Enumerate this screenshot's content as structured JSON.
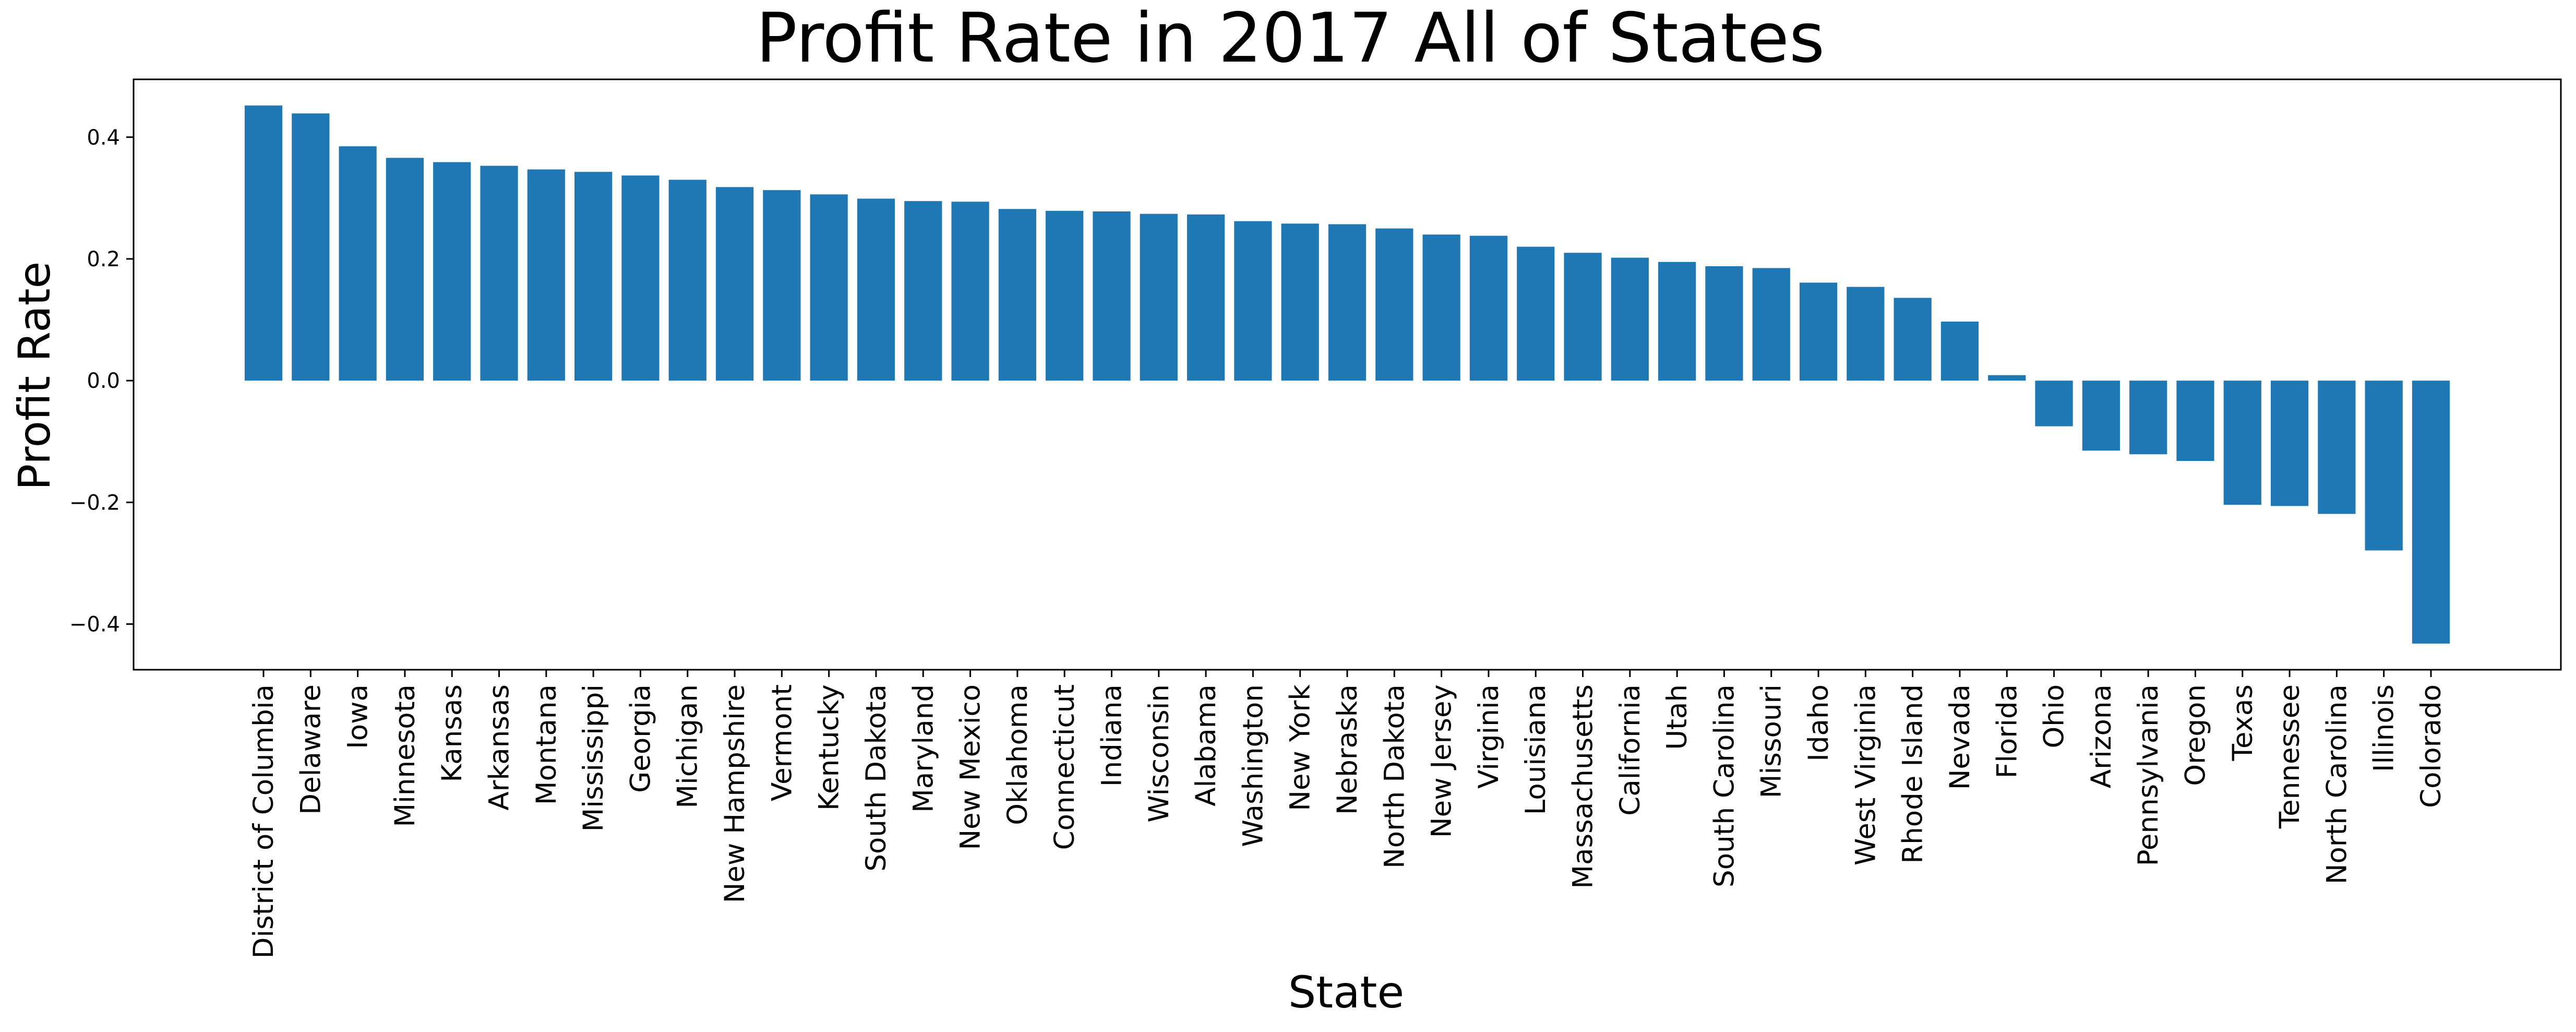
{
  "chart_data": {
    "type": "bar",
    "title": "Profit Rate in 2017 All of States",
    "xlabel": "State",
    "ylabel": "Profit Rate",
    "ylim": [
      -0.475,
      0.495
    ],
    "yticks": [
      -0.4,
      -0.2,
      0.0,
      0.2,
      0.4
    ],
    "ytick_labels": [
      "−0.4",
      "−0.2",
      "0.0",
      "0.2",
      "0.4"
    ],
    "grid": false,
    "legend": "none",
    "bar_color": "#1f77b4",
    "categories": [
      "District of Columbia",
      "Delaware",
      "Iowa",
      "Minnesota",
      "Kansas",
      "Arkansas",
      "Montana",
      "Mississippi",
      "Georgia",
      "Michigan",
      "New Hampshire",
      "Vermont",
      "Kentucky",
      "South Dakota",
      "Maryland",
      "New Mexico",
      "Oklahoma",
      "Connecticut",
      "Indiana",
      "Wisconsin",
      "Alabama",
      "Washington",
      "New York",
      "Nebraska",
      "North Dakota",
      "New Jersey",
      "Virginia",
      "Louisiana",
      "Massachusetts",
      "California",
      "Utah",
      "South Carolina",
      "Missouri",
      "Idaho",
      "West Virginia",
      "Rhode Island",
      "Nevada",
      "Florida",
      "Ohio",
      "Arizona",
      "Pennsylvania",
      "Oregon",
      "Texas",
      "Tennessee",
      "North Carolina",
      "Illinois",
      "Colorado"
    ],
    "values": [
      0.452,
      0.439,
      0.385,
      0.366,
      0.359,
      0.353,
      0.347,
      0.343,
      0.337,
      0.33,
      0.318,
      0.313,
      0.306,
      0.299,
      0.295,
      0.294,
      0.282,
      0.279,
      0.278,
      0.274,
      0.273,
      0.262,
      0.258,
      0.257,
      0.25,
      0.24,
      0.238,
      0.22,
      0.21,
      0.202,
      0.195,
      0.188,
      0.185,
      0.161,
      0.154,
      0.136,
      0.097,
      0.009,
      -0.075,
      -0.115,
      -0.121,
      -0.132,
      -0.204,
      -0.206,
      -0.219,
      -0.279,
      -0.432
    ]
  }
}
